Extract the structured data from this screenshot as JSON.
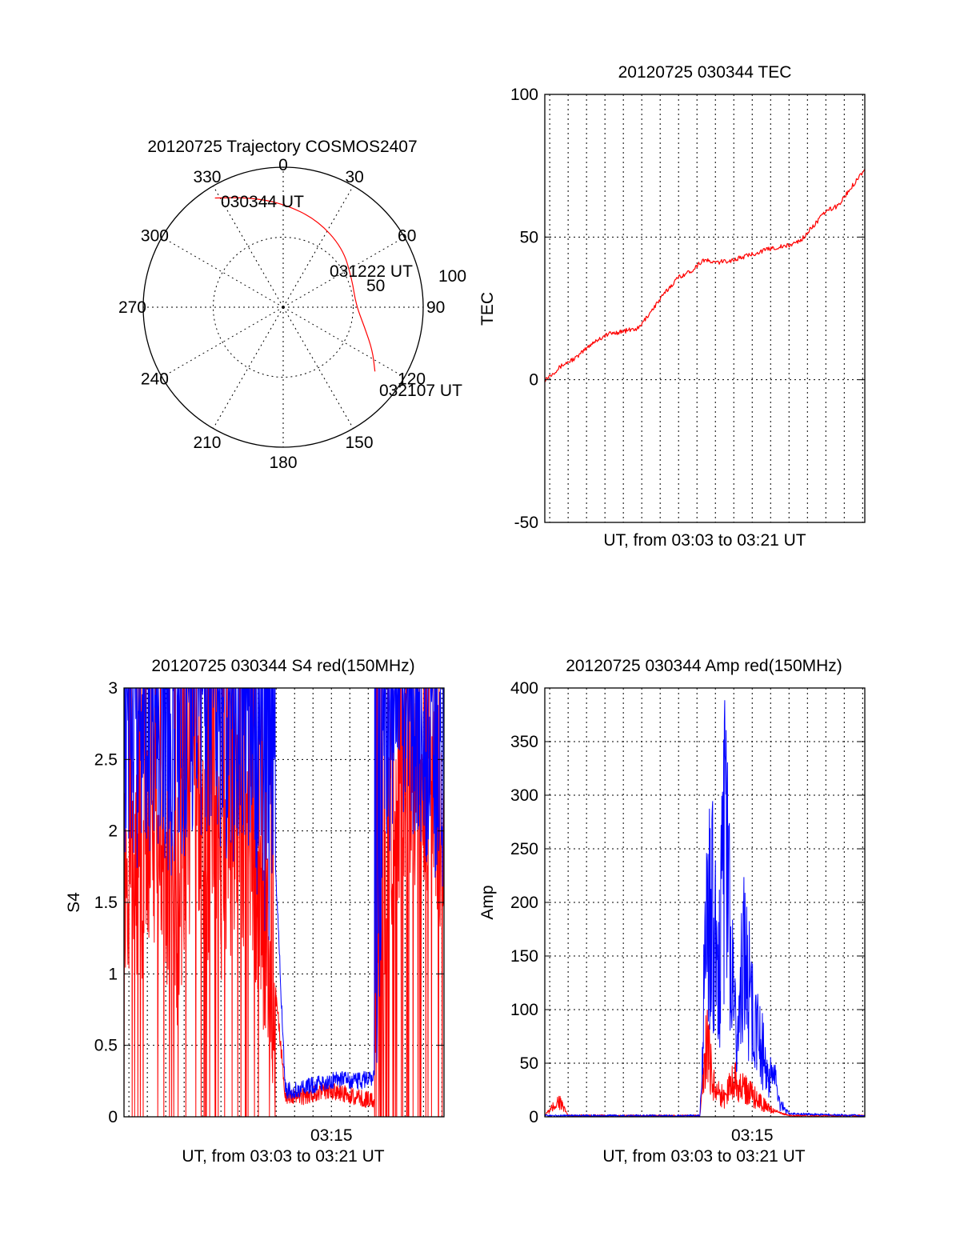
{
  "colors": {
    "red": "#ff0000",
    "blue": "#0000ff",
    "axis": "#000000"
  },
  "chart_data": [
    {
      "type": "polar",
      "title": "20120725 Trajectory COSMOS2407",
      "azimuth_labels": [
        "0",
        "30",
        "60",
        "90",
        "120",
        "150",
        "180",
        "210",
        "240",
        "270",
        "300",
        "330"
      ],
      "radial_ticks": [
        50,
        100
      ],
      "rlim": [
        0,
        100
      ],
      "grid": true,
      "annotations": [
        "030344 UT",
        "031222 UT",
        "032107 UT"
      ],
      "series": [
        {
          "color": "#ff0000",
          "points": [
            {
              "az": 328,
              "r": 92
            },
            {
              "az": 343,
              "r": 82
            },
            {
              "az": 0,
              "r": 74
            },
            {
              "az": 21,
              "r": 67
            },
            {
              "az": 45,
              "r": 60
            },
            {
              "az": 68,
              "r": 53
            },
            {
              "az": 88,
              "r": 52
            },
            {
              "az": 104,
              "r": 60
            },
            {
              "az": 116,
              "r": 71
            },
            {
              "az": 125,
              "r": 80
            }
          ]
        }
      ]
    },
    {
      "type": "line",
      "title": "20120725 030344 TEC",
      "xlabel": "UT, from 03:03 to 03:21 UT",
      "ylabel": "TEC",
      "xlim": [
        "03:03:44",
        "03:21:07"
      ],
      "ylim": [
        -50,
        100
      ],
      "yticks": [
        "-50",
        "0",
        "50",
        "100"
      ],
      "xtick_labels": [],
      "grid": true,
      "series": [
        {
          "color": "#ff0000",
          "x": [
            "03:03:44",
            "03:04:40",
            "03:05:30",
            "03:06:20",
            "03:07:10",
            "03:08:00",
            "03:08:50",
            "03:09:30",
            "03:10:20",
            "03:11:00",
            "03:11:40",
            "03:12:20",
            "03:13:00",
            "03:14:00",
            "03:15:00",
            "03:16:00",
            "03:17:00",
            "03:17:40",
            "03:18:20",
            "03:19:00",
            "03:19:40",
            "03:20:20",
            "03:21:07"
          ],
          "y": [
            0,
            5,
            8,
            13,
            16,
            17,
            18,
            24,
            31,
            36,
            38,
            42,
            41,
            42,
            44,
            46,
            47,
            49,
            54,
            59,
            61,
            67,
            74
          ]
        }
      ]
    },
    {
      "type": "line",
      "title": "20120725 030344 S4 red(150MHz)",
      "xlabel": "UT, from 03:03 to 03:21 UT",
      "ylabel": "S4",
      "xlim": [
        "03:03:44",
        "03:21:07"
      ],
      "ylim": [
        0,
        3
      ],
      "yticks": [
        "0",
        "0.5",
        "1",
        "1.5",
        "2",
        "2.5",
        "3"
      ],
      "xtick_labels": [
        "03:15"
      ],
      "grid": true,
      "series": [
        {
          "color": "#ff0000",
          "x": [
            "03:03:44",
            "03:04:30",
            "03:05:30",
            "03:06:30",
            "03:07:30",
            "03:08:30",
            "03:09:30",
            "03:10:30",
            "03:11:00",
            "03:11:57",
            "03:12:30",
            "03:13:30",
            "03:14:30",
            "03:15:30",
            "03:16:30",
            "03:17:20",
            "03:17:50",
            "03:18:30",
            "03:19:30",
            "03:20:30",
            "03:21:07"
          ],
          "y": [
            1.8,
            1.7,
            2.0,
            1.3,
            2.2,
            1.5,
            1.9,
            2.0,
            1.4,
            0.9,
            0.15,
            0.14,
            0.18,
            0.17,
            0.13,
            0.12,
            1.5,
            2.3,
            2.4,
            2.2,
            2.0
          ]
        },
        {
          "color": "#0000ff",
          "x": [
            "03:03:44",
            "03:04:30",
            "03:05:30",
            "03:06:30",
            "03:07:30",
            "03:08:30",
            "03:09:30",
            "03:10:30",
            "03:11:00",
            "03:11:57",
            "03:12:30",
            "03:13:30",
            "03:14:30",
            "03:15:30",
            "03:16:30",
            "03:17:20",
            "03:17:50",
            "03:18:30",
            "03:19:30",
            "03:20:30",
            "03:21:07"
          ],
          "y": [
            2.4,
            2.5,
            2.7,
            2.4,
            2.8,
            2.6,
            2.5,
            2.7,
            2.3,
            1.8,
            0.18,
            0.2,
            0.24,
            0.26,
            0.25,
            0.28,
            2.4,
            2.6,
            2.7,
            2.5,
            2.3
          ]
        }
      ]
    },
    {
      "type": "line",
      "title": "20120725 030344 Amp red(150MHz)",
      "xlabel": "UT, from 03:03 to 03:21 UT",
      "ylabel": "Amp",
      "xlim": [
        "03:03:44",
        "03:21:07"
      ],
      "ylim": [
        0,
        400
      ],
      "yticks": [
        "0",
        "50",
        "100",
        "150",
        "200",
        "250",
        "300",
        "350",
        "400"
      ],
      "xtick_labels": [
        "03:15"
      ],
      "grid": true,
      "series": [
        {
          "color": "#ff0000",
          "x": [
            "03:03:44",
            "03:04:30",
            "03:05:00",
            "03:12:10",
            "03:12:30",
            "03:13:00",
            "03:13:30",
            "03:14:00",
            "03:14:30",
            "03:15:00",
            "03:15:30",
            "03:16:00",
            "03:16:30",
            "03:17:00",
            "03:21:07"
          ],
          "y": [
            0,
            18,
            0,
            0,
            80,
            30,
            20,
            45,
            30,
            25,
            15,
            8,
            3,
            0,
            0
          ]
        },
        {
          "color": "#0000ff",
          "x": [
            "03:03:44",
            "03:12:10",
            "03:12:30",
            "03:12:50",
            "03:13:10",
            "03:13:30",
            "03:13:50",
            "03:14:10",
            "03:14:30",
            "03:14:50",
            "03:15:10",
            "03:15:30",
            "03:15:50",
            "03:16:10",
            "03:16:30",
            "03:17:00",
            "03:21:07"
          ],
          "y": [
            0,
            0,
            200,
            230,
            150,
            310,
            200,
            60,
            170,
            140,
            100,
            80,
            40,
            45,
            15,
            2,
            0
          ]
        }
      ]
    }
  ]
}
